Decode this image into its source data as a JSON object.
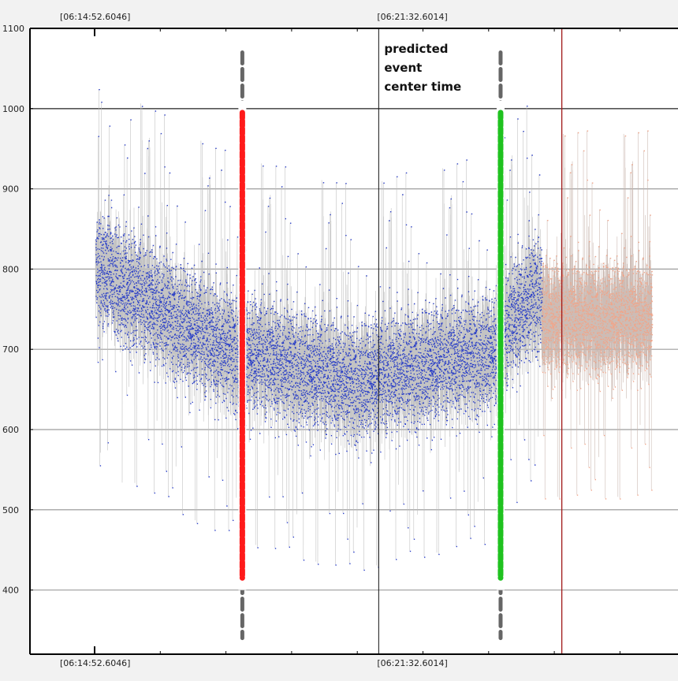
{
  "chart_data": {
    "type": "scatter",
    "title": "",
    "xlabel": "",
    "ylabel": "",
    "ylim": [
      320,
      1100
    ],
    "xlim": [
      0,
      1000
    ],
    "grid": true,
    "y_ticks": [
      400,
      500,
      600,
      700,
      800,
      900,
      1000,
      1100
    ],
    "top_time_labels": [
      "[06:14:52.6046]",
      "[06:21:32.6014]"
    ],
    "bottom_time_labels": [
      "[06:14:52.6046]",
      "[06:21:32.6014]"
    ],
    "annotation": [
      "predicted",
      "event",
      "center time"
    ],
    "colors": {
      "background": "#f2f2f2",
      "plot_bg": "#ffffff",
      "grid": "#9e9e9e",
      "noise": "#bdbdbd",
      "blue_points": "#2a3fc7",
      "salmon_points": "#f0a58a",
      "red_marker": "#ff1a1a",
      "green_marker": "#1fc21f",
      "gray_dash": "#666666",
      "red_vline": "#a01818"
    },
    "series": [
      {
        "segments": [
          {
            "x_start": 0,
            "x_end": 222,
            "mean_start": 800,
            "mean_end": 705
          },
          {
            "x_start": 222,
            "x_end": 458,
            "mean_start": 705,
            "mean_end": 660
          },
          {
            "x_start": 458,
            "x_end": 728,
            "mean_start": 660,
            "mean_end": 700
          },
          {
            "x_start": 728,
            "x_end": 802,
            "mean_start": 720,
            "mean_end": 780
          }
        ],
        "spread": 95
      },
      {
        "segments": [
          {
            "x_start": 802,
            "x_end": 1000,
            "mean_start": 740,
            "mean_end": 740
          }
        ],
        "spread": 90
      }
    ],
    "vertical_markers": [
      {
        "x": 264,
        "y_from": 340,
        "y_to": 1070,
        "red_from": 415,
        "red_to": 995
      },
      {
        "x": 728,
        "y_from": 340,
        "y_to": 1070,
        "green_from": 415,
        "green_to": 995
      }
    ],
    "center_time_line_x": 509,
    "red_vline_x": 838
  }
}
